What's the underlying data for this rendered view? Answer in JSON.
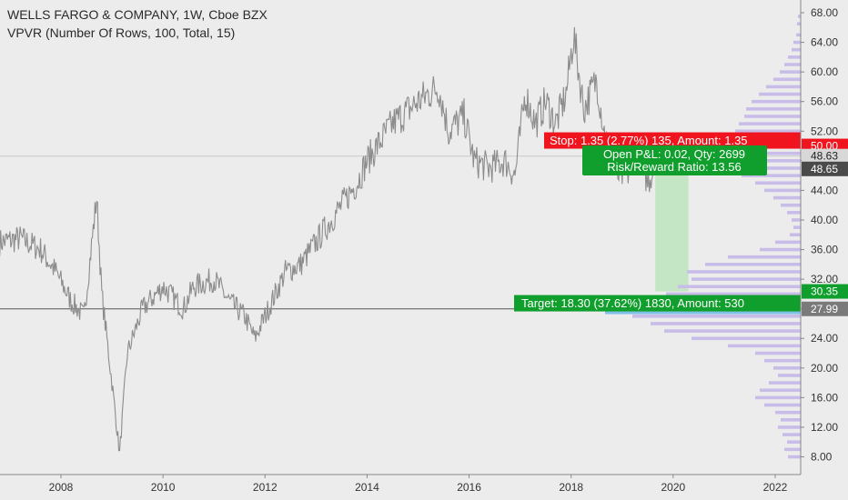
{
  "header": {
    "title": "WELLS FARGO & COMPANY, 1W, Cboe BZX",
    "indicator": "VPVR (Number Of Rows, 100, Total, 15)"
  },
  "colors": {
    "background": "#ececec",
    "price_line": "#8c8c8c",
    "volume_profile": "#c8bce8",
    "volume_highlight": "#7fc1e6",
    "stop_red": "#f0141e",
    "target_green": "#109e2c",
    "reward_zone": "#c5e6c4"
  },
  "chart_data": {
    "type": "line",
    "title": "WELLS FARGO & COMPANY, 1W, Cboe BZX",
    "xlim": [
      2006.8,
      2022.5
    ],
    "ylim": [
      7,
      68.5
    ],
    "x_ticks": [
      "2008",
      "2010",
      "2012",
      "2014",
      "2016",
      "2018",
      "2020",
      "2022"
    ],
    "y_ticks": [
      "8.00",
      "12.00",
      "16.00",
      "20.00",
      "24.00",
      "28.00",
      "32.00",
      "36.00",
      "40.00",
      "44.00",
      "48.00",
      "52.00",
      "56.00",
      "60.00",
      "64.00",
      "68.00"
    ],
    "grid": false,
    "series": [
      {
        "x": [
          2006.8,
          2007.2,
          2007.6,
          2007.9,
          2008.2,
          2008.45,
          2008.7,
          2008.8,
          2009.0,
          2009.15,
          2009.3,
          2009.6,
          2010.0,
          2010.4,
          2010.6,
          2011.0,
          2011.3,
          2011.6,
          2011.8,
          2012.0,
          2012.4,
          2012.7,
          2013.0,
          2013.4,
          2013.8,
          2014.0,
          2014.5,
          2015.0,
          2015.4,
          2015.6,
          2015.9,
          2016.1,
          2016.4,
          2016.7,
          2016.9,
          2017.1,
          2017.3,
          2017.5,
          2017.7,
          2017.9,
          2018.05,
          2018.25,
          2018.5,
          2018.65,
          2018.9,
          2019.1,
          2019.3,
          2019.5,
          2019.65
        ],
        "values": [
          37,
          37.5,
          36,
          33,
          29,
          27,
          43,
          30,
          18,
          8.5,
          22,
          28,
          31,
          28,
          31,
          32,
          29,
          27,
          24,
          27,
          33,
          34,
          37,
          41,
          45,
          48,
          53,
          56,
          58,
          52,
          54,
          48,
          47,
          48,
          46,
          57,
          53,
          56,
          53,
          57,
          65,
          55,
          59,
          52,
          46,
          46,
          50,
          45,
          47.5
        ]
      }
    ],
    "volume_profile_rows": [
      {
        "price": 67.5,
        "length": 3
      },
      {
        "price": 66.5,
        "length": 4
      },
      {
        "price": 65,
        "length": 5
      },
      {
        "price": 64,
        "length": 8
      },
      {
        "price": 63,
        "length": 10
      },
      {
        "price": 62,
        "length": 14
      },
      {
        "price": 61,
        "length": 18
      },
      {
        "price": 60,
        "length": 23
      },
      {
        "price": 59,
        "length": 30
      },
      {
        "price": 58,
        "length": 38
      },
      {
        "price": 57,
        "length": 46
      },
      {
        "price": 56,
        "length": 54
      },
      {
        "price": 55,
        "length": 60
      },
      {
        "price": 54,
        "length": 62
      },
      {
        "price": 53,
        "length": 68
      },
      {
        "price": 52,
        "length": 72
      },
      {
        "price": 51,
        "length": 76
      },
      {
        "price": 50,
        "length": 82
      },
      {
        "price": 49,
        "length": 90
      },
      {
        "price": 48,
        "length": 85
      },
      {
        "price": 47,
        "length": 75
      },
      {
        "price": 46,
        "length": 65
      },
      {
        "price": 45,
        "length": 50
      },
      {
        "price": 44,
        "length": 40
      },
      {
        "price": 43,
        "length": 30
      },
      {
        "price": 42,
        "length": 22
      },
      {
        "price": 41,
        "length": 15
      },
      {
        "price": 40,
        "length": 10
      },
      {
        "price": 39,
        "length": 8
      },
      {
        "price": 38,
        "length": 12
      },
      {
        "price": 37,
        "length": 28
      },
      {
        "price": 36,
        "length": 45
      },
      {
        "price": 35,
        "length": 80
      },
      {
        "price": 34,
        "length": 105
      },
      {
        "price": 33,
        "length": 125
      },
      {
        "price": 32,
        "length": 120
      },
      {
        "price": 31,
        "length": 135
      },
      {
        "price": 30,
        "length": 148
      },
      {
        "price": 29,
        "length": 160
      },
      {
        "price": 28,
        "length": 185
      },
      {
        "price": 27.5,
        "length": 215
      },
      {
        "price": 27,
        "length": 185
      },
      {
        "price": 26,
        "length": 165
      },
      {
        "price": 25,
        "length": 150
      },
      {
        "price": 24,
        "length": 120
      },
      {
        "price": 23,
        "length": 80
      },
      {
        "price": 22,
        "length": 50
      },
      {
        "price": 21,
        "length": 40
      },
      {
        "price": 20,
        "length": 30
      },
      {
        "price": 19,
        "length": 25
      },
      {
        "price": 18,
        "length": 35
      },
      {
        "price": 17,
        "length": 45
      },
      {
        "price": 16,
        "length": 50
      },
      {
        "price": 15,
        "length": 40
      },
      {
        "price": 14,
        "length": 28
      },
      {
        "price": 13,
        "length": 22
      },
      {
        "price": 12,
        "length": 25
      },
      {
        "price": 11,
        "length": 20
      },
      {
        "price": 10,
        "length": 15
      },
      {
        "price": 9,
        "length": 18
      },
      {
        "price": 8,
        "length": 14
      }
    ],
    "highlight_row_price": 27.5,
    "horizontal_lines": [
      48.63,
      27.99
    ],
    "position": {
      "x_start": 2019.65,
      "x_end": 2020.3,
      "entry": 48.65,
      "stop": 50.0,
      "target": 30.35,
      "stop_label": "Stop: 1.35 (2.77%) 135, Amount: 1.35",
      "pnl_label": "Open P&L: 0.02, Qty: 2699",
      "rr_label": "Risk/Reward Ratio: 13.56",
      "target_label": "Target: 18.30 (37.62%) 1830, Amount: 530"
    },
    "price_tags": [
      {
        "value": "50.00",
        "price": 50.0,
        "bg": "#f0141e",
        "fg": "#ffffff"
      },
      {
        "value": "48.63",
        "price": 48.63,
        "bg": "#d8d8d8",
        "fg": "#222222"
      },
      {
        "value": "48.65",
        "price": 46.9,
        "bg": "#4a4a4a",
        "fg": "#ffffff"
      },
      {
        "value": "30.35",
        "price": 30.35,
        "bg": "#109e2c",
        "fg": "#ffffff"
      },
      {
        "value": "27.99",
        "price": 27.99,
        "bg": "#7a7a7a",
        "fg": "#ffffff"
      }
    ]
  }
}
